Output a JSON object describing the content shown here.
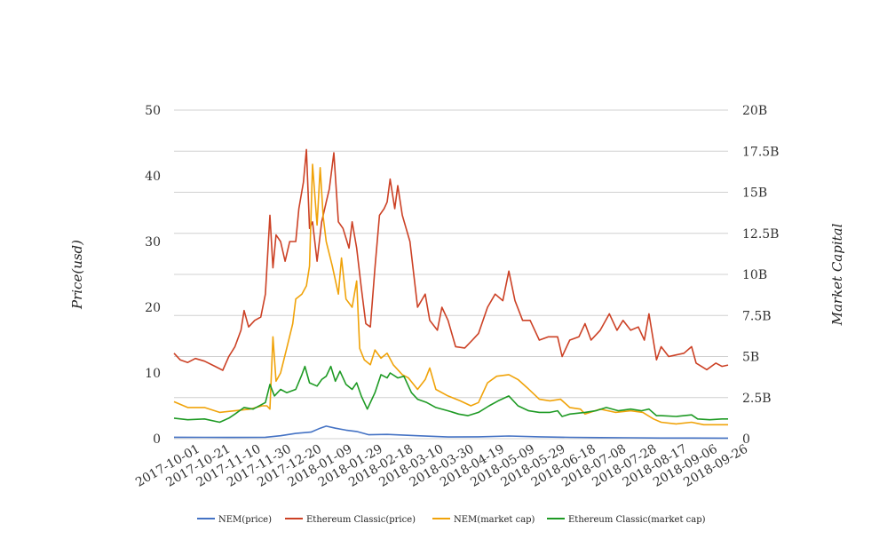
{
  "chart_data": {
    "type": "line",
    "title": "",
    "xlabel": "",
    "ylabel": "Price(usd)",
    "y2label": "Market Capital",
    "x_ticks": [
      "2017-10-01",
      "2017-10-21",
      "2017-11-10",
      "2017-11-30",
      "2017-12-20",
      "2018-01-09",
      "2018-01-29",
      "2018-02-18",
      "2018-03-10",
      "2018-03-30",
      "2018-04-19",
      "2018-05-09",
      "2018-05-29",
      "2018-06-18",
      "2018-07-08",
      "2018-07-28",
      "2018-08-17",
      "2018-09-06",
      "2018-09-26"
    ],
    "ylim": [
      0,
      50
    ],
    "y_ticks": [
      0,
      10,
      20,
      30,
      40,
      50
    ],
    "y2lim": [
      0,
      20
    ],
    "y2_ticks": [
      "0",
      "2.5B",
      "5B",
      "7.5B",
      "10B",
      "12.5B",
      "15B",
      "17.5B",
      "20B"
    ],
    "grid": "horizontal",
    "legend_position": "bottom",
    "x_start": "2017-10-01",
    "x_end": "2018-09-30",
    "series": [
      {
        "name": "NEM(price)",
        "axis": "left",
        "color": "#4472c4",
        "points": [
          [
            "2017-10-01",
            0.22
          ],
          [
            "2017-10-21",
            0.2
          ],
          [
            "2017-11-10",
            0.19
          ],
          [
            "2017-11-30",
            0.22
          ],
          [
            "2017-12-10",
            0.45
          ],
          [
            "2017-12-20",
            0.8
          ],
          [
            "2017-12-30",
            1.0
          ],
          [
            "2018-01-05",
            1.6
          ],
          [
            "2018-01-09",
            1.9
          ],
          [
            "2018-01-15",
            1.6
          ],
          [
            "2018-01-22",
            1.3
          ],
          [
            "2018-01-29",
            1.1
          ],
          [
            "2018-02-06",
            0.6
          ],
          [
            "2018-02-18",
            0.65
          ],
          [
            "2018-03-10",
            0.45
          ],
          [
            "2018-03-30",
            0.25
          ],
          [
            "2018-04-19",
            0.28
          ],
          [
            "2018-05-09",
            0.4
          ],
          [
            "2018-05-29",
            0.28
          ],
          [
            "2018-06-18",
            0.2
          ],
          [
            "2018-07-08",
            0.16
          ],
          [
            "2018-07-28",
            0.14
          ],
          [
            "2018-08-17",
            0.1
          ],
          [
            "2018-09-06",
            0.09
          ],
          [
            "2018-09-26",
            0.08
          ],
          [
            "2018-09-30",
            0.08
          ]
        ]
      },
      {
        "name": "Ethereum Classic(price)",
        "axis": "left",
        "color": "#cc4125",
        "points": [
          [
            "2017-10-01",
            13.0
          ],
          [
            "2017-10-05",
            12.0
          ],
          [
            "2017-10-10",
            11.6
          ],
          [
            "2017-10-15",
            12.2
          ],
          [
            "2017-10-21",
            11.8
          ],
          [
            "2017-10-28",
            11.0
          ],
          [
            "2017-11-02",
            10.4
          ],
          [
            "2017-11-06",
            12.5
          ],
          [
            "2017-11-10",
            14.0
          ],
          [
            "2017-11-14",
            16.5
          ],
          [
            "2017-11-16",
            19.5
          ],
          [
            "2017-11-19",
            17.0
          ],
          [
            "2017-11-23",
            18.0
          ],
          [
            "2017-11-27",
            18.5
          ],
          [
            "2017-11-30",
            22.0
          ],
          [
            "2017-12-03",
            34.0
          ],
          [
            "2017-12-05",
            26.0
          ],
          [
            "2017-12-07",
            31.0
          ],
          [
            "2017-12-10",
            30.0
          ],
          [
            "2017-12-13",
            27.0
          ],
          [
            "2017-12-16",
            30.0
          ],
          [
            "2017-12-20",
            30.0
          ],
          [
            "2017-12-22",
            35.0
          ],
          [
            "2017-12-25",
            39.0
          ],
          [
            "2017-12-27",
            44.0
          ],
          [
            "2017-12-29",
            32.0
          ],
          [
            "2017-12-31",
            33.0
          ],
          [
            "2018-01-03",
            27.0
          ],
          [
            "2018-01-06",
            33.0
          ],
          [
            "2018-01-09",
            36.0
          ],
          [
            "2018-01-11",
            38.0
          ],
          [
            "2018-01-14",
            43.5
          ],
          [
            "2018-01-17",
            33.0
          ],
          [
            "2018-01-20",
            32.0
          ],
          [
            "2018-01-24",
            29.0
          ],
          [
            "2018-01-26",
            33.0
          ],
          [
            "2018-01-29",
            29.0
          ],
          [
            "2018-02-01",
            23.0
          ],
          [
            "2018-02-04",
            17.5
          ],
          [
            "2018-02-07",
            17.0
          ],
          [
            "2018-02-10",
            26.0
          ],
          [
            "2018-02-13",
            34.0
          ],
          [
            "2018-02-16",
            35.0
          ],
          [
            "2018-02-18",
            36.0
          ],
          [
            "2018-02-20",
            39.5
          ],
          [
            "2018-02-23",
            35.0
          ],
          [
            "2018-02-25",
            38.5
          ],
          [
            "2018-02-28",
            34.0
          ],
          [
            "2018-03-05",
            30.0
          ],
          [
            "2018-03-10",
            20.0
          ],
          [
            "2018-03-15",
            22.0
          ],
          [
            "2018-03-18",
            18.0
          ],
          [
            "2018-03-23",
            16.5
          ],
          [
            "2018-03-26",
            20.0
          ],
          [
            "2018-03-30",
            18.0
          ],
          [
            "2018-04-04",
            14.0
          ],
          [
            "2018-04-10",
            13.8
          ],
          [
            "2018-04-15",
            15.0
          ],
          [
            "2018-04-19",
            16.0
          ],
          [
            "2018-04-25",
            20.0
          ],
          [
            "2018-04-30",
            22.0
          ],
          [
            "2018-05-05",
            21.0
          ],
          [
            "2018-05-09",
            25.5
          ],
          [
            "2018-05-13",
            21.0
          ],
          [
            "2018-05-18",
            18.0
          ],
          [
            "2018-05-23",
            18.0
          ],
          [
            "2018-05-29",
            15.0
          ],
          [
            "2018-06-04",
            15.5
          ],
          [
            "2018-06-10",
            15.5
          ],
          [
            "2018-06-13",
            12.5
          ],
          [
            "2018-06-18",
            15.0
          ],
          [
            "2018-06-24",
            15.5
          ],
          [
            "2018-06-28",
            17.5
          ],
          [
            "2018-07-02",
            15.0
          ],
          [
            "2018-07-08",
            16.5
          ],
          [
            "2018-07-14",
            19.0
          ],
          [
            "2018-07-19",
            16.5
          ],
          [
            "2018-07-23",
            18.0
          ],
          [
            "2018-07-28",
            16.5
          ],
          [
            "2018-08-02",
            17.0
          ],
          [
            "2018-08-06",
            15.0
          ],
          [
            "2018-08-09",
            19.0
          ],
          [
            "2018-08-14",
            12.0
          ],
          [
            "2018-08-17",
            14.0
          ],
          [
            "2018-08-22",
            12.5
          ],
          [
            "2018-09-01",
            13.0
          ],
          [
            "2018-09-06",
            14.0
          ],
          [
            "2018-09-09",
            11.5
          ],
          [
            "2018-09-16",
            10.5
          ],
          [
            "2018-09-22",
            11.5
          ],
          [
            "2018-09-26",
            11.0
          ],
          [
            "2018-09-30",
            11.2
          ]
        ]
      },
      {
        "name": "NEM(market cap)",
        "axis": "right",
        "color": "#f0a30a",
        "points": [
          [
            "2017-10-01",
            2.25
          ],
          [
            "2017-10-10",
            1.9
          ],
          [
            "2017-10-21",
            1.9
          ],
          [
            "2017-10-31",
            1.6
          ],
          [
            "2017-11-10",
            1.7
          ],
          [
            "2017-11-20",
            1.8
          ],
          [
            "2017-11-28",
            2.0
          ],
          [
            "2017-12-01",
            2.0
          ],
          [
            "2017-12-03",
            1.8
          ],
          [
            "2017-12-05",
            6.2
          ],
          [
            "2017-12-07",
            3.5
          ],
          [
            "2017-12-10",
            4.0
          ],
          [
            "2017-12-14",
            5.5
          ],
          [
            "2017-12-18",
            7.0
          ],
          [
            "2017-12-20",
            8.5
          ],
          [
            "2017-12-24",
            8.8
          ],
          [
            "2017-12-27",
            9.3
          ],
          [
            "2017-12-29",
            10.5
          ],
          [
            "2017-12-31",
            16.7
          ],
          [
            "2018-01-03",
            13.0
          ],
          [
            "2018-01-05",
            16.5
          ],
          [
            "2018-01-07",
            13.5
          ],
          [
            "2018-01-09",
            12.0
          ],
          [
            "2018-01-13",
            10.5
          ],
          [
            "2018-01-17",
            8.8
          ],
          [
            "2018-01-19",
            11.0
          ],
          [
            "2018-01-22",
            8.5
          ],
          [
            "2018-01-26",
            8.0
          ],
          [
            "2018-01-29",
            9.6
          ],
          [
            "2018-01-31",
            5.5
          ],
          [
            "2018-02-03",
            4.8
          ],
          [
            "2018-02-07",
            4.5
          ],
          [
            "2018-02-10",
            5.4
          ],
          [
            "2018-02-14",
            4.9
          ],
          [
            "2018-02-18",
            5.2
          ],
          [
            "2018-02-22",
            4.5
          ],
          [
            "2018-02-28",
            3.9
          ],
          [
            "2018-03-04",
            3.7
          ],
          [
            "2018-03-10",
            3.0
          ],
          [
            "2018-03-15",
            3.6
          ],
          [
            "2018-03-18",
            4.3
          ],
          [
            "2018-03-22",
            3.0
          ],
          [
            "2018-03-30",
            2.6
          ],
          [
            "2018-04-07",
            2.3
          ],
          [
            "2018-04-14",
            2.0
          ],
          [
            "2018-04-19",
            2.2
          ],
          [
            "2018-04-25",
            3.4
          ],
          [
            "2018-05-01",
            3.8
          ],
          [
            "2018-05-09",
            3.9
          ],
          [
            "2018-05-15",
            3.6
          ],
          [
            "2018-05-21",
            3.1
          ],
          [
            "2018-05-29",
            2.4
          ],
          [
            "2018-06-05",
            2.3
          ],
          [
            "2018-06-12",
            2.4
          ],
          [
            "2018-06-18",
            1.9
          ],
          [
            "2018-06-25",
            1.8
          ],
          [
            "2018-06-28",
            1.5
          ],
          [
            "2018-07-08",
            1.8
          ],
          [
            "2018-07-18",
            1.6
          ],
          [
            "2018-07-28",
            1.7
          ],
          [
            "2018-08-05",
            1.6
          ],
          [
            "2018-08-12",
            1.2
          ],
          [
            "2018-08-17",
            1.0
          ],
          [
            "2018-08-27",
            0.9
          ],
          [
            "2018-09-06",
            1.0
          ],
          [
            "2018-09-14",
            0.85
          ],
          [
            "2018-09-26",
            0.85
          ],
          [
            "2018-09-30",
            0.85
          ]
        ]
      },
      {
        "name": "Ethereum Classic(market cap)",
        "axis": "right",
        "color": "#1e9a24",
        "points": [
          [
            "2017-10-01",
            1.25
          ],
          [
            "2017-10-10",
            1.15
          ],
          [
            "2017-10-21",
            1.2
          ],
          [
            "2017-10-31",
            1.0
          ],
          [
            "2017-11-06",
            1.25
          ],
          [
            "2017-11-10",
            1.5
          ],
          [
            "2017-11-16",
            1.9
          ],
          [
            "2017-11-22",
            1.8
          ],
          [
            "2017-11-30",
            2.2
          ],
          [
            "2017-12-03",
            3.3
          ],
          [
            "2017-12-06",
            2.6
          ],
          [
            "2017-12-10",
            3.0
          ],
          [
            "2017-12-14",
            2.8
          ],
          [
            "2017-12-20",
            3.0
          ],
          [
            "2017-12-24",
            3.9
          ],
          [
            "2017-12-26",
            4.4
          ],
          [
            "2017-12-29",
            3.4
          ],
          [
            "2018-01-03",
            3.2
          ],
          [
            "2018-01-06",
            3.6
          ],
          [
            "2018-01-09",
            3.8
          ],
          [
            "2018-01-12",
            4.4
          ],
          [
            "2018-01-15",
            3.5
          ],
          [
            "2018-01-18",
            4.1
          ],
          [
            "2018-01-22",
            3.3
          ],
          [
            "2018-01-26",
            3.0
          ],
          [
            "2018-01-29",
            3.4
          ],
          [
            "2018-02-01",
            2.6
          ],
          [
            "2018-02-05",
            1.8
          ],
          [
            "2018-02-10",
            2.8
          ],
          [
            "2018-02-14",
            3.9
          ],
          [
            "2018-02-18",
            3.7
          ],
          [
            "2018-02-20",
            4.0
          ],
          [
            "2018-02-25",
            3.7
          ],
          [
            "2018-03-01",
            3.8
          ],
          [
            "2018-03-06",
            2.8
          ],
          [
            "2018-03-10",
            2.4
          ],
          [
            "2018-03-16",
            2.2
          ],
          [
            "2018-03-22",
            1.9
          ],
          [
            "2018-03-30",
            1.7
          ],
          [
            "2018-04-06",
            1.5
          ],
          [
            "2018-04-12",
            1.4
          ],
          [
            "2018-04-19",
            1.6
          ],
          [
            "2018-04-26",
            2.0
          ],
          [
            "2018-05-02",
            2.3
          ],
          [
            "2018-05-09",
            2.6
          ],
          [
            "2018-05-15",
            2.0
          ],
          [
            "2018-05-22",
            1.7
          ],
          [
            "2018-05-29",
            1.6
          ],
          [
            "2018-06-05",
            1.6
          ],
          [
            "2018-06-10",
            1.7
          ],
          [
            "2018-06-13",
            1.35
          ],
          [
            "2018-06-18",
            1.5
          ],
          [
            "2018-06-28",
            1.6
          ],
          [
            "2018-07-05",
            1.7
          ],
          [
            "2018-07-12",
            1.9
          ],
          [
            "2018-07-20",
            1.7
          ],
          [
            "2018-07-28",
            1.8
          ],
          [
            "2018-08-04",
            1.7
          ],
          [
            "2018-08-09",
            1.8
          ],
          [
            "2018-08-14",
            1.4
          ],
          [
            "2018-08-17",
            1.4
          ],
          [
            "2018-08-27",
            1.35
          ],
          [
            "2018-09-06",
            1.45
          ],
          [
            "2018-09-10",
            1.2
          ],
          [
            "2018-09-18",
            1.15
          ],
          [
            "2018-09-26",
            1.2
          ],
          [
            "2018-09-30",
            1.2
          ]
        ]
      }
    ]
  }
}
